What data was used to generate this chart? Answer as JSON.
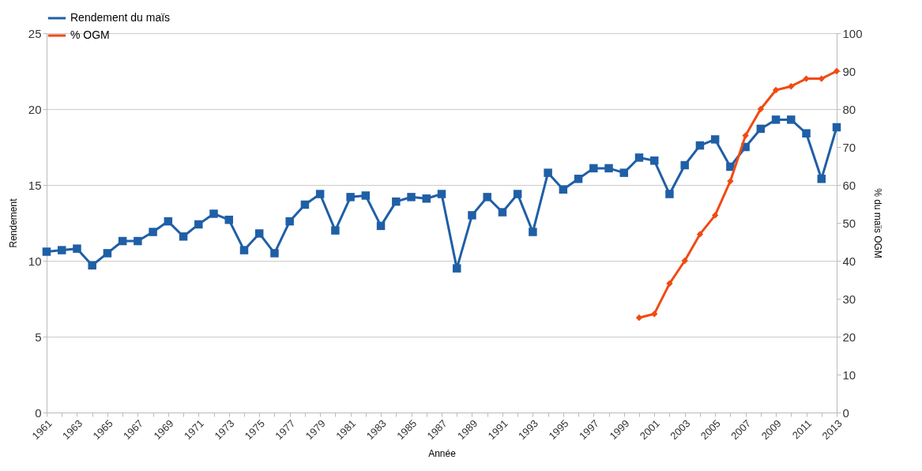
{
  "chart_data": {
    "type": "line",
    "xlabel": "Année",
    "ylabel": "Rendement",
    "y2label": "% du maïs OGM",
    "categories": [
      "1961",
      null,
      "1963",
      null,
      "1965",
      null,
      "1967",
      null,
      "1969",
      null,
      "1971",
      null,
      "1973",
      null,
      "1975",
      null,
      "1977",
      null,
      "1979",
      null,
      "1981",
      null,
      "1983",
      null,
      "1985",
      null,
      "1987",
      null,
      "1989",
      null,
      "1991",
      null,
      "1993",
      null,
      "1995",
      null,
      "1997",
      null,
      "1999",
      null,
      "2001",
      null,
      "2003",
      null,
      "2005",
      null,
      "2007",
      null,
      "2009",
      null,
      "2011",
      null,
      "2013"
    ],
    "series": [
      {
        "name": "Rendement du maïs",
        "color": "#1f5fa6",
        "marker": "square",
        "values": [
          10.6,
          10.7,
          10.8,
          9.7,
          10.5,
          11.3,
          11.3,
          11.9,
          12.6,
          11.6,
          12.4,
          13.1,
          12.7,
          10.7,
          11.8,
          10.5,
          12.6,
          13.7,
          14.4,
          12.0,
          14.2,
          14.3,
          12.3,
          13.9,
          14.2,
          14.1,
          14.4,
          9.5,
          13.0,
          14.2,
          13.2,
          14.4,
          11.9,
          15.8,
          14.7,
          15.4,
          16.1,
          16.1,
          15.8,
          16.8,
          16.6,
          14.4,
          16.3,
          17.6,
          18.0,
          16.2,
          17.5,
          18.7,
          19.3,
          19.3,
          18.4,
          15.4,
          18.8
        ]
      },
      {
        "name": "% OGM",
        "color": "#f04a14",
        "marker": "diamond",
        "axis": "y2",
        "values": [
          null,
          null,
          null,
          null,
          null,
          null,
          null,
          null,
          null,
          null,
          null,
          null,
          null,
          null,
          null,
          null,
          null,
          null,
          null,
          null,
          null,
          null,
          null,
          null,
          null,
          null,
          null,
          null,
          null,
          null,
          null,
          null,
          null,
          null,
          null,
          null,
          null,
          null,
          null,
          25,
          26,
          34,
          40,
          47,
          52,
          61,
          73,
          80,
          85,
          86,
          88,
          88,
          90
        ]
      }
    ],
    "ylim": [
      0,
      25
    ],
    "yticks": [
      0,
      5,
      10,
      15,
      20,
      25
    ],
    "y2lim": [
      0,
      100
    ],
    "y2ticks": [
      0,
      10,
      20,
      30,
      40,
      50,
      60,
      70,
      80,
      90,
      100
    ],
    "grid": "y",
    "legend": "top",
    "line_style": "solid"
  }
}
